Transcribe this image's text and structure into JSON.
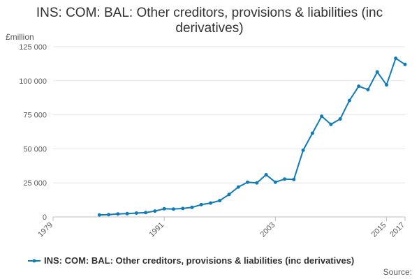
{
  "chart_data": {
    "type": "line",
    "title_line1": "INS: COM: BAL: Other creditors, provisions & liabilities (inc",
    "title_line2": "derivatives)",
    "ylabel": "£million",
    "ylim": [
      0,
      125000
    ],
    "yticks": [
      {
        "value": 0,
        "label": "0"
      },
      {
        "value": 25000,
        "label": "25 000"
      },
      {
        "value": 50000,
        "label": "50 000"
      },
      {
        "value": 75000,
        "label": "75 000"
      },
      {
        "value": 100000,
        "label": "100 000"
      },
      {
        "value": 125000,
        "label": "125 000"
      }
    ],
    "xlim": [
      1979,
      2017
    ],
    "xticks": [
      {
        "value": 1979,
        "label": "1979"
      },
      {
        "value": 1991,
        "label": "1991"
      },
      {
        "value": 2003,
        "label": "2003"
      },
      {
        "value": 2015,
        "label": "2015"
      },
      {
        "value": 2017,
        "label": "2017"
      }
    ],
    "grid": true,
    "series": [
      {
        "name": "INS: COM: BAL: Other creditors, provisions & liabilities (inc derivatives)",
        "color": "#0f7bb8",
        "x": [
          1984,
          1985,
          1986,
          1987,
          1988,
          1989,
          1990,
          1991,
          1992,
          1993,
          1994,
          1995,
          1996,
          1997,
          1998,
          1999,
          2000,
          2001,
          2002,
          2003,
          2004,
          2005,
          2006,
          2007,
          2008,
          2009,
          2010,
          2011,
          2012,
          2013,
          2014,
          2015,
          2016,
          2017
        ],
        "values": [
          1500,
          1700,
          2200,
          2400,
          2800,
          3200,
          4300,
          6000,
          5800,
          6200,
          7000,
          9000,
          10200,
          12000,
          16500,
          22000,
          25500,
          25000,
          31000,
          25500,
          27800,
          27500,
          49000,
          61500,
          74000,
          68000,
          72000,
          85500,
          96000,
          93500,
          106500,
          97000,
          116500,
          112000
        ]
      }
    ],
    "legend_position": "bottom",
    "source_label": "Source:"
  }
}
